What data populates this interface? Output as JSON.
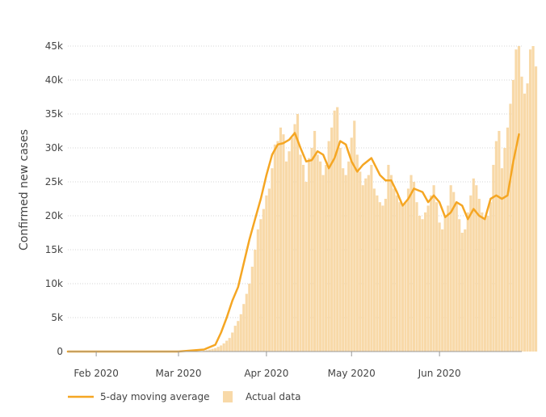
{
  "chart_data": {
    "type": "line",
    "title": "",
    "xlabel": "",
    "ylabel": "Confirmed new cases",
    "x_tick_labels": [
      "Feb 2020",
      "Mar 2020",
      "Apr 2020",
      "May 2020",
      "Jun 2020"
    ],
    "y_tick_labels": [
      "0",
      "5k",
      "10k",
      "15k",
      "20k",
      "25k",
      "30k",
      "35k",
      "40k",
      "45k"
    ],
    "ylim": [
      0,
      45000
    ],
    "xlim": [
      "2020-01-22",
      "2020-06-30"
    ],
    "grid": "horizontal dotted",
    "legend_position": "bottom-left",
    "colors": {
      "line": "#f5a623",
      "bars": "#f8d9a8",
      "grid": "#d6d6d6",
      "axis": "#999999"
    },
    "series": [
      {
        "name": "5-day moving average",
        "kind": "line",
        "x": [
          "2020-01-22",
          "2020-02-01",
          "2020-02-15",
          "2020-03-01",
          "2020-03-10",
          "2020-03-14",
          "2020-03-16",
          "2020-03-18",
          "2020-03-20",
          "2020-03-22",
          "2020-03-24",
          "2020-03-26",
          "2020-03-28",
          "2020-03-30",
          "2020-04-01",
          "2020-04-03",
          "2020-04-05",
          "2020-04-07",
          "2020-04-09",
          "2020-04-11",
          "2020-04-13",
          "2020-04-15",
          "2020-04-17",
          "2020-04-19",
          "2020-04-21",
          "2020-04-23",
          "2020-04-25",
          "2020-04-27",
          "2020-04-29",
          "2020-05-01",
          "2020-05-03",
          "2020-05-05",
          "2020-05-08",
          "2020-05-11",
          "2020-05-13",
          "2020-05-15",
          "2020-05-17",
          "2020-05-19",
          "2020-05-21",
          "2020-05-23",
          "2020-05-26",
          "2020-05-28",
          "2020-05-30",
          "2020-06-01",
          "2020-06-03",
          "2020-06-05",
          "2020-06-07",
          "2020-06-09",
          "2020-06-11",
          "2020-06-13",
          "2020-06-15",
          "2020-06-17",
          "2020-06-19",
          "2020-06-21",
          "2020-06-23",
          "2020-06-25",
          "2020-06-27",
          "2020-06-29"
        ],
        "values": [
          0,
          0,
          0,
          0,
          300,
          1000,
          2800,
          5000,
          7500,
          9500,
          13000,
          16500,
          19500,
          22500,
          26000,
          29000,
          30500,
          30700,
          31200,
          32200,
          30000,
          28000,
          28200,
          29500,
          29000,
          27000,
          28500,
          31000,
          30500,
          28000,
          26500,
          27500,
          28500,
          26000,
          25200,
          25200,
          23500,
          21500,
          22500,
          24000,
          23500,
          22000,
          23000,
          22000,
          19800,
          20500,
          22000,
          21500,
          19500,
          21000,
          20000,
          19500,
          22500,
          23000,
          22500,
          23000,
          28000,
          32000
        ]
      },
      {
        "name": "Actual data",
        "kind": "bar",
        "x_start": "2020-01-22",
        "values": [
          0,
          0,
          0,
          0,
          0,
          0,
          0,
          0,
          0,
          0,
          0,
          0,
          0,
          0,
          0,
          0,
          0,
          0,
          0,
          0,
          0,
          0,
          0,
          0,
          0,
          0,
          0,
          0,
          0,
          0,
          0,
          0,
          0,
          0,
          0,
          0,
          0,
          0,
          0,
          0,
          0,
          0,
          0,
          0,
          0,
          0,
          0,
          0,
          100,
          200,
          300,
          400,
          500,
          700,
          900,
          1200,
          1600,
          2000,
          2800,
          3800,
          4500,
          5500,
          7000,
          8500,
          10000,
          12500,
          15000,
          18000,
          19500,
          21000,
          23000,
          24000,
          27000,
          30500,
          31000,
          33000,
          32000,
          28000,
          29500,
          31500,
          33500,
          35000,
          29000,
          27500,
          25000,
          28500,
          30000,
          32500,
          29000,
          28000,
          26000,
          27500,
          31000,
          33000,
          35500,
          36000,
          30000,
          27000,
          26000,
          28000,
          31500,
          34000,
          29000,
          26500,
          24500,
          25500,
          26000,
          27500,
          24000,
          23000,
          22000,
          21500,
          22500,
          27500,
          26000,
          24000,
          23000,
          22000,
          21500,
          22000,
          24000,
          26000,
          25000,
          22000,
          20000,
          19500,
          20500,
          21500,
          23000,
          24500,
          22000,
          19000,
          18000,
          20000,
          21500,
          24500,
          23500,
          22000,
          19500,
          17500,
          18000,
          20500,
          23000,
          25500,
          24500,
          22500,
          20500,
          19500,
          20000,
          22000,
          27500,
          31000,
          32500,
          27000,
          30000,
          33000,
          36500,
          40000,
          44500,
          45000,
          40500,
          38000,
          39500,
          44500,
          45000,
          42000
        ]
      }
    ]
  }
}
